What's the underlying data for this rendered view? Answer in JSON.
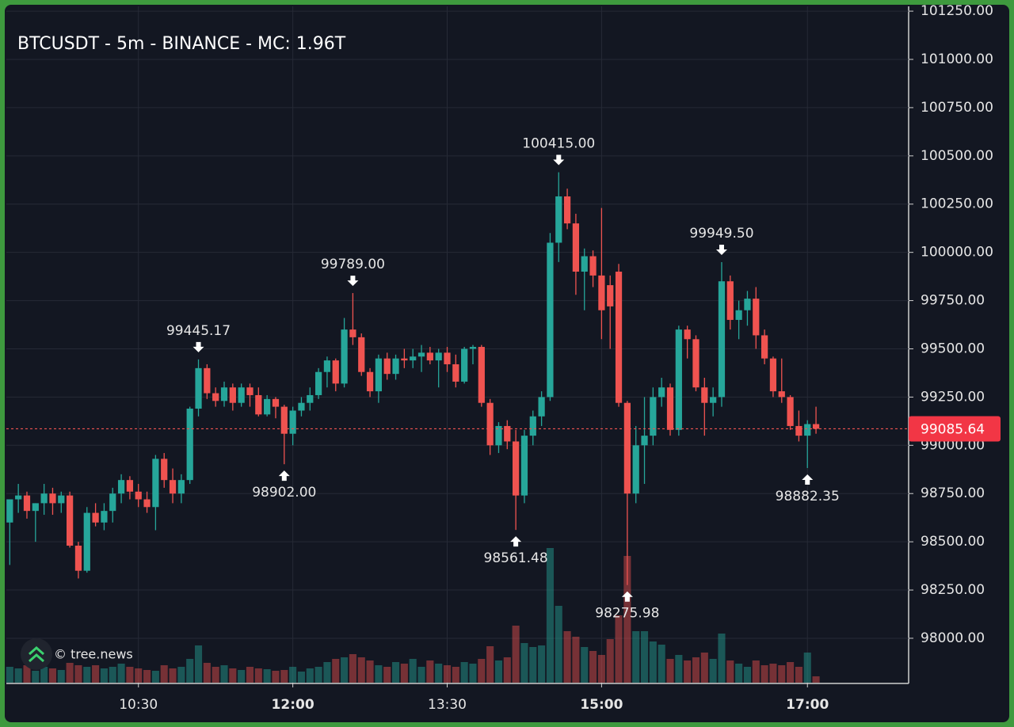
{
  "chart_data": {
    "type": "candlestick",
    "title": "BTCUSDT - 5m - BINANCE - MC: 1.96T",
    "watermark": "© tree.news",
    "x": [
      "09:15",
      "09:20",
      "09:25",
      "09:30",
      "09:35",
      "09:40",
      "09:45",
      "09:50",
      "09:55",
      "10:00",
      "10:05",
      "10:10",
      "10:15",
      "10:20",
      "10:25",
      "10:30",
      "10:35",
      "10:40",
      "10:45",
      "10:50",
      "10:55",
      "11:00",
      "11:05",
      "11:10",
      "11:15",
      "11:20",
      "11:25",
      "11:30",
      "11:35",
      "11:40",
      "11:45",
      "11:50",
      "11:55",
      "12:00",
      "12:05",
      "12:10",
      "12:15",
      "12:20",
      "12:25",
      "12:30",
      "12:35",
      "12:40",
      "12:45",
      "12:50",
      "12:55",
      "13:00",
      "13:05",
      "13:10",
      "13:15",
      "13:20",
      "13:25",
      "13:30",
      "13:35",
      "13:40",
      "13:45",
      "13:50",
      "13:55",
      "14:00",
      "14:05",
      "14:10",
      "14:15",
      "14:20",
      "14:25",
      "14:30",
      "14:35",
      "14:40",
      "14:45",
      "14:50",
      "14:55",
      "15:00",
      "15:05",
      "15:10",
      "15:15",
      "15:20",
      "15:25",
      "15:30",
      "15:35",
      "15:40",
      "15:45",
      "15:50",
      "15:55",
      "16:00",
      "16:05",
      "16:10",
      "16:15",
      "16:20",
      "16:25",
      "16:30",
      "16:35",
      "16:40",
      "16:45",
      "16:50",
      "16:55",
      "17:00",
      "17:05"
    ],
    "ohlc": [
      [
        98600,
        98720,
        98380,
        98720
      ],
      [
        98720,
        98800,
        98650,
        98740
      ],
      [
        98740,
        98760,
        98620,
        98660
      ],
      [
        98660,
        98700,
        98500,
        98700
      ],
      [
        98700,
        98800,
        98640,
        98750
      ],
      [
        98750,
        98780,
        98640,
        98700
      ],
      [
        98700,
        98760,
        98650,
        98740
      ],
      [
        98740,
        98760,
        98470,
        98480
      ],
      [
        98480,
        98500,
        98310,
        98350
      ],
      [
        98350,
        98680,
        98340,
        98650
      ],
      [
        98650,
        98700,
        98580,
        98600
      ],
      [
        98600,
        98700,
        98560,
        98660
      ],
      [
        98660,
        98780,
        98600,
        98750
      ],
      [
        98750,
        98850,
        98700,
        98820
      ],
      [
        98820,
        98840,
        98720,
        98760
      ],
      [
        98760,
        98800,
        98680,
        98720
      ],
      [
        98720,
        98760,
        98650,
        98680
      ],
      [
        98680,
        98950,
        98560,
        98930
      ],
      [
        98930,
        98960,
        98780,
        98820
      ],
      [
        98820,
        98880,
        98700,
        98750
      ],
      [
        98750,
        98850,
        98700,
        98820
      ],
      [
        98820,
        99200,
        98800,
        99190
      ],
      [
        99190,
        99445.17,
        99150,
        99400
      ],
      [
        99400,
        99420,
        99240,
        99270
      ],
      [
        99270,
        99300,
        99200,
        99230
      ],
      [
        99230,
        99330,
        99200,
        99300
      ],
      [
        99300,
        99320,
        99180,
        99220
      ],
      [
        99220,
        99320,
        99200,
        99300
      ],
      [
        99300,
        99320,
        99200,
        99260
      ],
      [
        99260,
        99300,
        99150,
        99160
      ],
      [
        99160,
        99260,
        99150,
        99240
      ],
      [
        99240,
        99250,
        99140,
        99200
      ],
      [
        99200,
        99210,
        98902,
        99060
      ],
      [
        99060,
        99200,
        99000,
        99180
      ],
      [
        99180,
        99250,
        99150,
        99220
      ],
      [
        99220,
        99300,
        99180,
        99260
      ],
      [
        99260,
        99400,
        99240,
        99380
      ],
      [
        99380,
        99460,
        99300,
        99440
      ],
      [
        99440,
        99450,
        99280,
        99320
      ],
      [
        99320,
        99660,
        99300,
        99600
      ],
      [
        99600,
        99789,
        99520,
        99560
      ],
      [
        99560,
        99580,
        99360,
        99380
      ],
      [
        99380,
        99400,
        99250,
        99280
      ],
      [
        99280,
        99470,
        99220,
        99450
      ],
      [
        99450,
        99480,
        99340,
        99370
      ],
      [
        99370,
        99470,
        99340,
        99450
      ],
      [
        99450,
        99500,
        99400,
        99440
      ],
      [
        99440,
        99500,
        99400,
        99460
      ],
      [
        99460,
        99520,
        99380,
        99480
      ],
      [
        99480,
        99510,
        99420,
        99440
      ],
      [
        99440,
        99500,
        99300,
        99480
      ],
      [
        99480,
        99510,
        99380,
        99420
      ],
      [
        99420,
        99470,
        99300,
        99330
      ],
      [
        99330,
        99510,
        99320,
        99500
      ],
      [
        99500,
        99520,
        99420,
        99510
      ],
      [
        99510,
        99520,
        99200,
        99220
      ],
      [
        99220,
        99240,
        98950,
        99000
      ],
      [
        99000,
        99120,
        98960,
        99100
      ],
      [
        99100,
        99130,
        98980,
        99020
      ],
      [
        99020,
        99080,
        98561.48,
        98740
      ],
      [
        98740,
        99080,
        98700,
        99050
      ],
      [
        99050,
        99180,
        99000,
        99150
      ],
      [
        99150,
        99280,
        99100,
        99250
      ],
      [
        99250,
        100100,
        99230,
        100050
      ],
      [
        100050,
        100415,
        99950,
        100290
      ],
      [
        100290,
        100330,
        100120,
        100150
      ],
      [
        100150,
        100200,
        99780,
        99900
      ],
      [
        99900,
        100020,
        99700,
        99980
      ],
      [
        99980,
        100010,
        99820,
        99880
      ],
      [
        99880,
        100230,
        99550,
        99700
      ],
      [
        99830,
        99880,
        99500,
        99720
      ],
      [
        99900,
        99940,
        99200,
        99220
      ],
      [
        99220,
        99230,
        98275.98,
        98750
      ],
      [
        98750,
        99100,
        98700,
        99000
      ],
      [
        99000,
        99250,
        98800,
        99050
      ],
      [
        99050,
        99300,
        99000,
        99250
      ],
      [
        99250,
        99350,
        99200,
        99300
      ],
      [
        99300,
        99320,
        99050,
        99080
      ],
      [
        99080,
        99620,
        99050,
        99600
      ],
      [
        99600,
        99620,
        99450,
        99550
      ],
      [
        99550,
        99570,
        99280,
        99300
      ],
      [
        99300,
        99350,
        99050,
        99220
      ],
      [
        99220,
        99300,
        99150,
        99250
      ],
      [
        99250,
        99949.5,
        99200,
        99850
      ],
      [
        99850,
        99880,
        99600,
        99650
      ],
      [
        99650,
        99750,
        99550,
        99700
      ],
      [
        99700,
        99800,
        99620,
        99760
      ],
      [
        99760,
        99820,
        99500,
        99570
      ],
      [
        99570,
        99600,
        99420,
        99450
      ],
      [
        99450,
        99460,
        99250,
        99280
      ],
      [
        99280,
        99450,
        99220,
        99250
      ],
      [
        99250,
        99260,
        99080,
        99100
      ],
      [
        99100,
        99180,
        99020,
        99050
      ],
      [
        99050,
        99130,
        98882.35,
        99110
      ],
      [
        99110,
        99200,
        99060,
        99085.64
      ]
    ],
    "volume": [
      20,
      18,
      22,
      15,
      20,
      18,
      16,
      25,
      22,
      20,
      22,
      18,
      20,
      24,
      20,
      18,
      16,
      15,
      22,
      18,
      20,
      30,
      47,
      25,
      20,
      22,
      18,
      16,
      20,
      18,
      17,
      15,
      16,
      20,
      14,
      18,
      20,
      26,
      30,
      32,
      36,
      32,
      28,
      22,
      20,
      26,
      24,
      30,
      20,
      28,
      24,
      22,
      20,
      26,
      24,
      30,
      46,
      28,
      32,
      72,
      50,
      45,
      47,
      170,
      97,
      65,
      58,
      45,
      40,
      35,
      55,
      85,
      160,
      65,
      65,
      52,
      48,
      30,
      35,
      28,
      32,
      38,
      30,
      62,
      28,
      24,
      20,
      28,
      22,
      24,
      22,
      26,
      20,
      38,
      8
    ],
    "up_color": "#26a69a",
    "down_color": "#ef5350",
    "annotations": [
      {
        "value": 99445.17,
        "label": "99445.17"
      },
      {
        "value": 98902,
        "label": "98902.00"
      },
      {
        "value": 99789,
        "label": "99789.00"
      },
      {
        "value": 98561.48,
        "label": "98561.48"
      },
      {
        "value": 100415,
        "label": "100415.00"
      },
      {
        "value": 98275.98,
        "label": "98275.98"
      },
      {
        "value": 99949.5,
        "label": "99949.50"
      },
      {
        "value": 98882.35,
        "label": "98882.35"
      }
    ],
    "xlim": [
      "09:13",
      "17:59"
    ],
    "xticks": [
      "10:30",
      "12:00",
      "13:30",
      "15:00",
      "17:00"
    ],
    "ylim": [
      97770,
      101275
    ],
    "yticks": [
      {
        "value": 101250,
        "label": "101250.00"
      },
      {
        "value": 101000,
        "label": "101000.00"
      },
      {
        "value": 100750,
        "label": "100750.00"
      },
      {
        "value": 100500,
        "label": "100500.00"
      },
      {
        "value": 100250,
        "label": "100250.00"
      },
      {
        "value": 100000,
        "label": "100000.00"
      },
      {
        "value": 99750,
        "label": "99750.00"
      },
      {
        "value": 99500,
        "label": "99500.00"
      },
      {
        "value": 99250,
        "label": "99250.00"
      },
      {
        "value": 99000,
        "label": "99000.00"
      },
      {
        "value": 98750,
        "label": "98750.00"
      },
      {
        "value": 98500,
        "label": "98500.00"
      },
      {
        "value": 98250,
        "label": "98250.00"
      },
      {
        "value": 98000,
        "label": "98000.00"
      }
    ],
    "grid": true
  }
}
